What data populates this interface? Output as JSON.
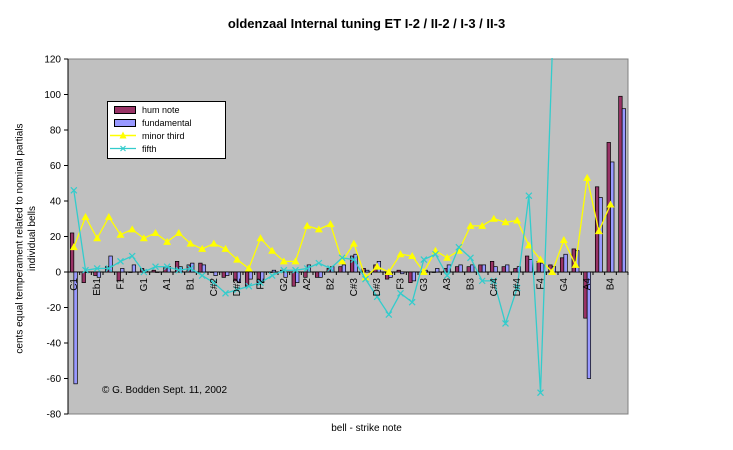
{
  "chart_data": {
    "type": "bar",
    "title": "oldenzaal Internal tuning ET I-2 / II-2 / I-3 / II-3",
    "ylabel_lines": [
      "cents equal temperament related to nominal partials",
      "individual bells"
    ],
    "xlabel": "bell - strike note",
    "ylim": [
      -80,
      120
    ],
    "yticks": [
      -80,
      -60,
      -40,
      -20,
      0,
      20,
      40,
      60,
      80,
      100,
      120
    ],
    "grid": false,
    "legend_position": "upper-left",
    "annotation": "© G. Bodden Sept. 11, 2002",
    "x_tick_labels": [
      "C1",
      "Eb1",
      "F1",
      "G1",
      "A1",
      "B1",
      "C#2",
      "D#2",
      "F2",
      "G2",
      "A2",
      "B2",
      "C#3",
      "D#3",
      "F3",
      "G3",
      "A3",
      "B3",
      "C#4",
      "D#4",
      "F4",
      "G4",
      "A4",
      "B4"
    ],
    "bell_count": 48,
    "series": [
      {
        "name": "hum note",
        "kind": "bar",
        "color": "#993366",
        "values": [
          22,
          -6,
          -2,
          3,
          -5,
          0,
          2,
          1,
          3,
          6,
          4,
          5,
          0,
          -3,
          -5,
          -8,
          -7,
          0,
          1,
          -8,
          -3,
          -3,
          2,
          3,
          9,
          2,
          4,
          -4,
          1,
          -6,
          0,
          0,
          2,
          3,
          3,
          4,
          6,
          3,
          2,
          9,
          6,
          4,
          8,
          13,
          -26,
          48,
          73,
          99
        ]
      },
      {
        "name": "fundamental",
        "kind": "bar",
        "color": "#9999FF",
        "values": [
          -63,
          0,
          -3,
          9,
          2,
          4,
          1,
          0,
          3,
          3,
          5,
          4,
          -2,
          -2,
          -6,
          -4,
          -6,
          1,
          -3,
          -6,
          4,
          -3,
          3,
          4,
          10,
          1,
          6,
          -3,
          -1,
          -5,
          1,
          2,
          4,
          4,
          4,
          4,
          3,
          4,
          3,
          7,
          5,
          3,
          10,
          12,
          -60,
          42,
          62,
          92
        ]
      },
      {
        "name": "minor third",
        "kind": "line",
        "color": "#FFFF00",
        "values": [
          14,
          31,
          19,
          31,
          21,
          24,
          19,
          22,
          17,
          22,
          16,
          13,
          16,
          13,
          7,
          2,
          19,
          12,
          6,
          6,
          26,
          24,
          27,
          6,
          16,
          -3,
          3,
          0,
          10,
          9,
          0,
          12,
          8,
          12,
          26,
          26,
          30,
          28,
          29,
          15,
          7,
          0,
          18,
          4,
          53,
          23,
          38
        ]
      },
      {
        "name": "fifth",
        "kind": "line",
        "color": "#33CCCC",
        "values": [
          46,
          1,
          2,
          2,
          6,
          9,
          0,
          3,
          3,
          1,
          2,
          -2,
          -6,
          -12,
          -10,
          -8,
          -6,
          -2,
          1,
          1,
          2,
          5,
          2,
          8,
          7,
          -4,
          -14,
          -24,
          -12,
          -17,
          7,
          10,
          -2,
          14,
          8,
          -5,
          -5,
          -29,
          -9,
          43,
          -68,
          122
        ]
      }
    ]
  }
}
